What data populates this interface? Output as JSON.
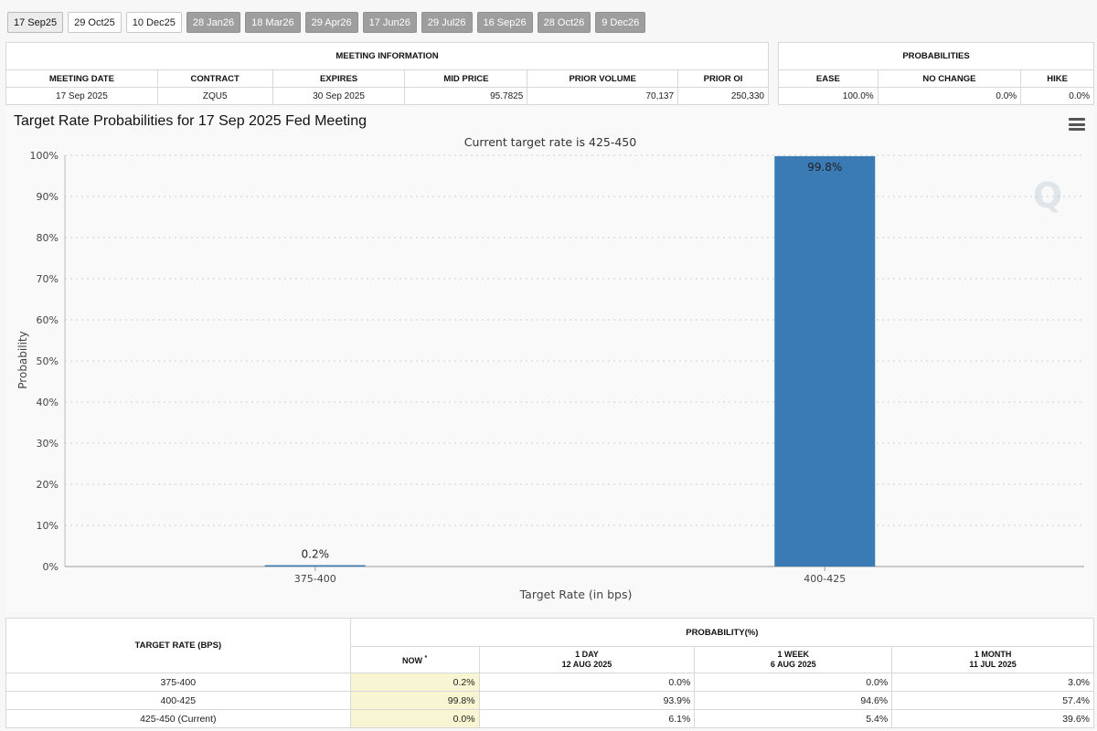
{
  "tabs": [
    {
      "label": "17 Sep25",
      "style": "selected"
    },
    {
      "label": "29 Oct25",
      "style": "light"
    },
    {
      "label": "10 Dec25",
      "style": "light"
    },
    {
      "label": "28 Jan26",
      "style": "dark"
    },
    {
      "label": "18 Mar26",
      "style": "dark"
    },
    {
      "label": "29 Apr26",
      "style": "dark"
    },
    {
      "label": "17 Jun26",
      "style": "dark"
    },
    {
      "label": "29 Jul26",
      "style": "dark"
    },
    {
      "label": "16 Sep26",
      "style": "dark"
    },
    {
      "label": "28 Oct26",
      "style": "dark"
    },
    {
      "label": "9 Dec26",
      "style": "dark"
    }
  ],
  "meeting_info": {
    "title": "MEETING INFORMATION",
    "headers": [
      "MEETING DATE",
      "CONTRACT",
      "EXPIRES",
      "MID PRICE",
      "PRIOR VOLUME",
      "PRIOR OI"
    ],
    "row": [
      "17 Sep 2025",
      "ZQU5",
      "30 Sep 2025",
      "95.7825",
      "70,137",
      "250,330"
    ]
  },
  "probabilities": {
    "title": "PROBABILITIES",
    "headers": [
      "EASE",
      "NO CHANGE",
      "HIKE"
    ],
    "row": [
      "100.0%",
      "0.0%",
      "0.0%"
    ]
  },
  "chart": {
    "title": "Target Rate Probabilities for 17 Sep 2025 Fed Meeting",
    "menu_icon": "hamburger-menu-icon",
    "watermark_icon": "q-logo-watermark"
  },
  "chart_data": {
    "type": "bar",
    "title": "Target Rate Probabilities for 17 Sep 2025 Fed Meeting",
    "subtitle": "Current target rate is 425-450",
    "xlabel": "Target Rate (in bps)",
    "ylabel": "Probability",
    "categories": [
      "375-400",
      "400-425"
    ],
    "values": [
      0.2,
      99.8
    ],
    "data_labels": [
      "0.2%",
      "99.8%"
    ],
    "ylim": [
      0,
      100
    ],
    "yticks": [
      0,
      10,
      20,
      30,
      40,
      50,
      60,
      70,
      80,
      90,
      100
    ],
    "ytick_labels": [
      "0%",
      "10%",
      "20%",
      "30%",
      "40%",
      "50%",
      "60%",
      "70%",
      "80%",
      "90%",
      "100%"
    ],
    "grid": true,
    "bar_color": "#3a7ab5"
  },
  "prob_table": {
    "col0_header": "TARGET RATE (BPS)",
    "group_header": "PROBABILITY(%)",
    "now_header": "NOW",
    "now_marker": "*",
    "col_headers": [
      {
        "line1": "1 DAY",
        "line2": "12 AUG 2025"
      },
      {
        "line1": "1 WEEK",
        "line2": "6 AUG 2025"
      },
      {
        "line1": "1 MONTH",
        "line2": "11 JUL 2025"
      }
    ],
    "rows": [
      {
        "rate": "375-400",
        "now": "0.2%",
        "day": "0.0%",
        "week": "0.0%",
        "month": "3.0%"
      },
      {
        "rate": "400-425",
        "now": "99.8%",
        "day": "93.9%",
        "week": "94.6%",
        "month": "57.4%"
      },
      {
        "rate": "425-450 (Current)",
        "now": "0.0%",
        "day": "6.1%",
        "week": "5.4%",
        "month": "39.6%"
      }
    ]
  }
}
